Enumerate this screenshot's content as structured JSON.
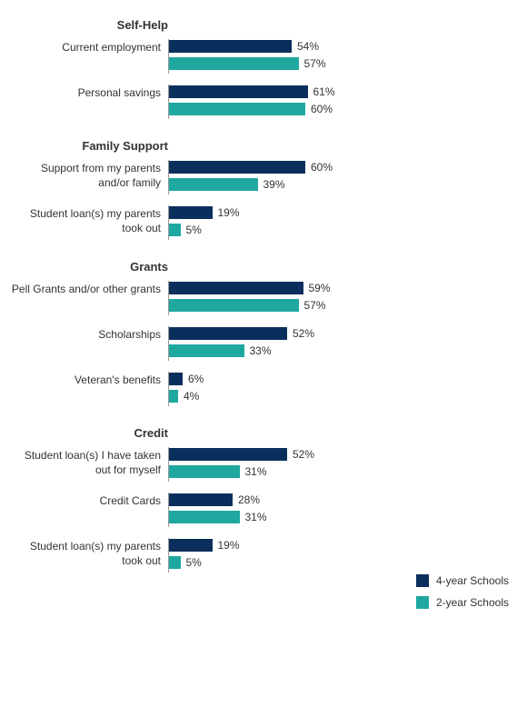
{
  "chart": {
    "type": "bar",
    "orientation": "horizontal",
    "max_value": 100,
    "bar_area_width": 250,
    "colors": {
      "series1": "#0b2f5c",
      "series2": "#1ea8a0",
      "text": "#333333",
      "axis": "#999999",
      "background": "#ffffff"
    },
    "fonts": {
      "group_title_size": 13,
      "label_size": 12,
      "value_size": 12
    },
    "legend": {
      "items": [
        {
          "label": "4-year Schools",
          "color": "#0b2f5c"
        },
        {
          "label": "2-year Schools",
          "color": "#1ea8a0"
        }
      ]
    },
    "groups": [
      {
        "title": "Self-Help",
        "items": [
          {
            "label": "Current employment",
            "values": [
              54,
              57
            ]
          },
          {
            "label": "Personal savings",
            "values": [
              61,
              60
            ]
          }
        ]
      },
      {
        "title": "Family Support",
        "items": [
          {
            "label": "Support from my parents and/or family",
            "values": [
              60,
              39
            ]
          },
          {
            "label": "Student loan(s) my parents took out",
            "values": [
              19,
              5
            ]
          }
        ]
      },
      {
        "title": "Grants",
        "items": [
          {
            "label": "Pell Grants and/or other grants",
            "values": [
              59,
              57
            ]
          },
          {
            "label": "Scholarships",
            "values": [
              52,
              33
            ]
          },
          {
            "label": "Veteran's benefits",
            "values": [
              6,
              4
            ]
          }
        ]
      },
      {
        "title": "Credit",
        "items": [
          {
            "label": "Student loan(s) I have taken out for myself",
            "values": [
              52,
              31
            ]
          },
          {
            "label": "Credit Cards",
            "values": [
              28,
              31
            ]
          },
          {
            "label": "Student loan(s) my parents took out",
            "values": [
              19,
              5
            ]
          }
        ]
      }
    ]
  }
}
